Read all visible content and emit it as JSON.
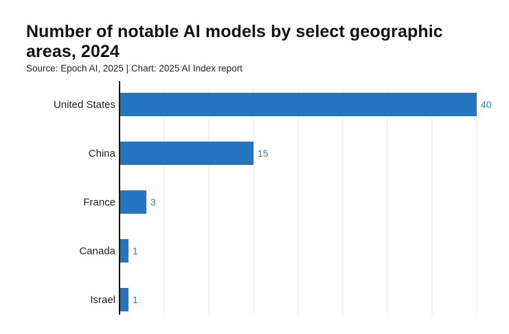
{
  "chart_data": {
    "type": "bar",
    "orientation": "horizontal",
    "title": "Number of notable AI models by select geographic areas, 2024",
    "subtitle": "Source: Epoch AI, 2025 | Chart: 2025 AI Index report",
    "categories": [
      "United States",
      "China",
      "France",
      "Canada",
      "Israel"
    ],
    "values": [
      40,
      15,
      3,
      1,
      1
    ],
    "xlim": [
      0,
      40
    ],
    "grid": true,
    "bar_color": "#2574c0",
    "label_color": "#2f7cc0"
  }
}
